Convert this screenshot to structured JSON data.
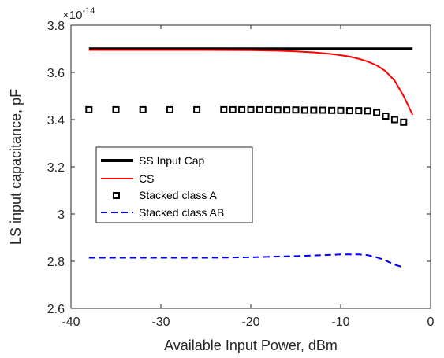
{
  "chart_data": {
    "type": "line",
    "xlabel": "Available Input Power, dBm",
    "ylabel": "LS input capacitance, pF",
    "y_multiplier_base": "×10",
    "y_multiplier_exponent": "-14",
    "xlim": [
      -40,
      0
    ],
    "ylim": [
      2.6,
      3.8
    ],
    "xticks": [
      "-40",
      "-30",
      "-20",
      "-10",
      "0"
    ],
    "yticks": [
      "2.6",
      "2.8",
      "3",
      "3.2",
      "3.4",
      "3.6",
      "3.8"
    ],
    "grid": false,
    "legend_position": "left-middle",
    "series": [
      {
        "name": "SS Input Cap",
        "style": "solid-thick",
        "color": "#000000",
        "x": [
          -38,
          -2
        ],
        "y": [
          3.7,
          3.7
        ]
      },
      {
        "name": "CS",
        "style": "solid",
        "color": "#ff0000",
        "x": [
          -38,
          -30,
          -25,
          -20,
          -17,
          -15,
          -13,
          -11,
          -10,
          -9,
          -8,
          -7,
          -6,
          -5,
          -4,
          -3,
          -2
        ],
        "y": [
          3.695,
          3.695,
          3.695,
          3.694,
          3.692,
          3.689,
          3.685,
          3.678,
          3.673,
          3.667,
          3.658,
          3.646,
          3.63,
          3.605,
          3.565,
          3.5,
          3.42
        ]
      },
      {
        "name": "Stacked class A",
        "style": "square-markers",
        "color": "#000000",
        "x": [
          -38,
          -35,
          -32,
          -29,
          -26,
          -23,
          -22,
          -21,
          -20,
          -19,
          -18,
          -17,
          -16,
          -15,
          -14,
          -13,
          -12,
          -11,
          -10,
          -9,
          -8,
          -7,
          -6,
          -5,
          -4,
          -3
        ],
        "y": [
          3.442,
          3.442,
          3.442,
          3.442,
          3.442,
          3.442,
          3.442,
          3.442,
          3.442,
          3.442,
          3.442,
          3.441,
          3.441,
          3.441,
          3.44,
          3.44,
          3.44,
          3.439,
          3.439,
          3.438,
          3.438,
          3.437,
          3.43,
          3.415,
          3.4,
          3.389
        ]
      },
      {
        "name": "Stacked class AB",
        "style": "dashed",
        "color": "#0000ff",
        "x": [
          -38,
          -30,
          -25,
          -20,
          -15,
          -12,
          -10,
          -8,
          -7,
          -6,
          -5,
          -4,
          -3
        ],
        "y": [
          2.815,
          2.815,
          2.815,
          2.817,
          2.822,
          2.826,
          2.829,
          2.829,
          2.826,
          2.817,
          2.803,
          2.786,
          2.774
        ]
      }
    ]
  },
  "colors": {
    "axis": "#262626",
    "background": "#ffffff"
  }
}
